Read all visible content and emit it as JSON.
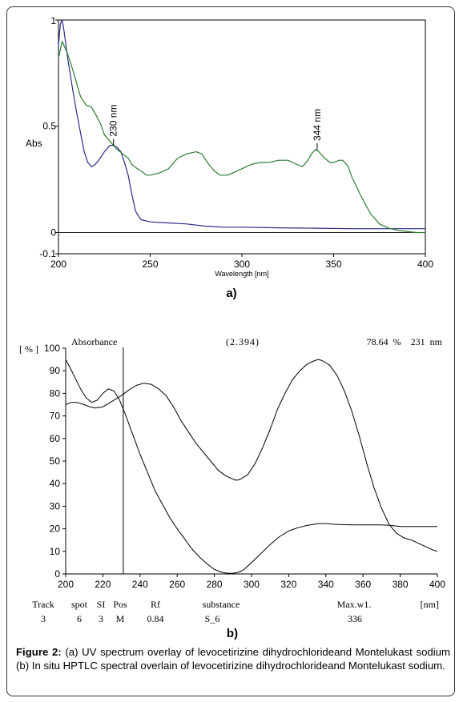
{
  "colors": {
    "blue_series": "#2b2b8a",
    "green_series": "#2e7d32",
    "axis": "#000000"
  },
  "chart_data": [
    {
      "type": "line",
      "panel_label": "a)",
      "xlabel": "Wavelength [nm]",
      "ylabel": "Abs",
      "xlim": [
        200,
        400
      ],
      "ylim": [
        -0.1,
        1
      ],
      "x_ticks": [
        "200",
        "250",
        "300",
        "350",
        "400"
      ],
      "y_ticks": [
        "1",
        "0.5",
        "0",
        "-0.1"
      ],
      "annotations": [
        {
          "text": "230 nm",
          "x": 230,
          "y": 0.41
        },
        {
          "text": "344 nm",
          "x": 341,
          "y": 0.39
        }
      ],
      "series": [
        {
          "color": "#2b2b8a",
          "x": [
            200,
            201,
            202,
            203,
            205,
            208,
            210,
            212,
            214,
            216,
            218,
            220,
            222,
            225,
            228,
            230,
            232,
            234,
            236,
            238,
            240,
            242,
            245,
            250,
            260,
            270,
            280,
            290,
            300,
            320,
            340,
            360,
            380,
            390,
            400
          ],
          "y": [
            0.88,
            0.98,
            1.0,
            0.95,
            0.82,
            0.66,
            0.56,
            0.47,
            0.38,
            0.33,
            0.31,
            0.32,
            0.34,
            0.38,
            0.41,
            0.41,
            0.4,
            0.38,
            0.33,
            0.27,
            0.18,
            0.1,
            0.06,
            0.05,
            0.045,
            0.04,
            0.03,
            0.025,
            0.025,
            0.022,
            0.02,
            0.018,
            0.018,
            0.018,
            0.018
          ]
        },
        {
          "color": "#2e7d32",
          "x": [
            200,
            202,
            205,
            208,
            210,
            212,
            215,
            218,
            220,
            223,
            225,
            228,
            230,
            232,
            235,
            238,
            240,
            243,
            245,
            248,
            250,
            255,
            260,
            265,
            270,
            275,
            278,
            282,
            285,
            288,
            292,
            295,
            300,
            305,
            310,
            315,
            320,
            325,
            330,
            333,
            336,
            338,
            340,
            342,
            345,
            348,
            350,
            353,
            355,
            358,
            360,
            365,
            370,
            375,
            380,
            385,
            390,
            395,
            400
          ],
          "y": [
            0.82,
            0.9,
            0.84,
            0.76,
            0.7,
            0.64,
            0.6,
            0.59,
            0.56,
            0.51,
            0.46,
            0.43,
            0.41,
            0.39,
            0.37,
            0.35,
            0.32,
            0.3,
            0.29,
            0.27,
            0.27,
            0.28,
            0.3,
            0.35,
            0.37,
            0.38,
            0.37,
            0.32,
            0.29,
            0.27,
            0.27,
            0.28,
            0.3,
            0.32,
            0.33,
            0.33,
            0.34,
            0.34,
            0.32,
            0.31,
            0.34,
            0.37,
            0.39,
            0.38,
            0.35,
            0.33,
            0.33,
            0.34,
            0.34,
            0.31,
            0.26,
            0.17,
            0.09,
            0.04,
            0.02,
            0.01,
            0.005,
            0.0,
            0.0
          ]
        }
      ]
    },
    {
      "type": "line",
      "panel_label": "b)",
      "title": "Absorbance",
      "header_value": "(2.394)",
      "header_right": "78.64  %    231  nm",
      "ylabel": "[ % ]",
      "xunit": "[nm]",
      "xlim": [
        200,
        400
      ],
      "ylim": [
        0,
        100
      ],
      "x_ticks": [
        "200",
        "220",
        "240",
        "260",
        "280",
        "300",
        "320",
        "340",
        "360",
        "380",
        "400"
      ],
      "y_ticks": [
        "100",
        "90",
        "80",
        "70",
        "60",
        "50",
        "40",
        "30",
        "20",
        "10",
        "0"
      ],
      "cursor_x": 231,
      "series": [
        {
          "color": "#000000",
          "x": [
            200,
            203,
            206,
            210,
            213,
            216,
            220,
            224,
            227,
            230,
            234,
            238,
            242,
            246,
            250,
            254,
            258,
            262,
            266,
            270,
            274,
            278,
            282,
            286,
            290,
            292,
            294,
            298,
            302,
            306,
            310,
            314,
            318,
            322,
            326,
            330,
            334,
            336,
            338,
            342,
            346,
            350,
            354,
            358,
            362,
            366,
            370,
            374,
            378,
            382,
            386,
            390,
            394,
            398,
            400
          ],
          "y": [
            75,
            76,
            76,
            75,
            74,
            73.5,
            74,
            76,
            77.5,
            79,
            81.5,
            83.5,
            84.5,
            84,
            82,
            79,
            74,
            68,
            63,
            58,
            54,
            50,
            46,
            43.5,
            42,
            41.5,
            42,
            44,
            49,
            56,
            64,
            73,
            80,
            86,
            90,
            93,
            94.5,
            95,
            94.5,
            92.5,
            88,
            81,
            72,
            61,
            49,
            38,
            29,
            22,
            18,
            16,
            15,
            13.5,
            12,
            10.5,
            10
          ]
        },
        {
          "color": "#000000",
          "x": [
            200,
            202,
            205,
            208,
            211,
            214,
            217,
            220,
            223,
            226,
            229,
            232,
            236,
            240,
            244,
            248,
            252,
            256,
            260,
            264,
            268,
            272,
            276,
            280,
            284,
            287,
            290,
            293,
            296,
            300,
            305,
            310,
            315,
            320,
            325,
            330,
            336,
            340,
            345,
            350,
            355,
            360,
            365,
            370,
            375,
            380,
            385,
            390,
            395,
            400
          ],
          "y": [
            95,
            92,
            87,
            82,
            78,
            76,
            77,
            80,
            82,
            81,
            77,
            71,
            62,
            53,
            45,
            37,
            31,
            25,
            20,
            15.5,
            11,
            7.5,
            4.5,
            2,
            0.7,
            0.3,
            0.3,
            0.7,
            2,
            5,
            9,
            13,
            16.5,
            19,
            20.5,
            21.5,
            22.3,
            22.3,
            22,
            21.8,
            21.7,
            21.7,
            21.7,
            21.7,
            21.5,
            21,
            21,
            21,
            21,
            21
          ]
        }
      ]
    }
  ],
  "table": {
    "headers": [
      "Track",
      "spot",
      "SI",
      "Pos",
      "Rf",
      "substance",
      "Max.w1."
    ],
    "values": [
      "3",
      "6",
      "3",
      "M",
      "0.84",
      "S_6",
      "336"
    ]
  },
  "caption": {
    "label": "Figure 2:",
    "text": " (a) UV spectrum overlay of levocetirizine dihydrochlorideand Montelukast sodium (b) In situ HPTLC spectral overlain of levocetirizine dihydrochlorideand Montelukast sodium."
  }
}
